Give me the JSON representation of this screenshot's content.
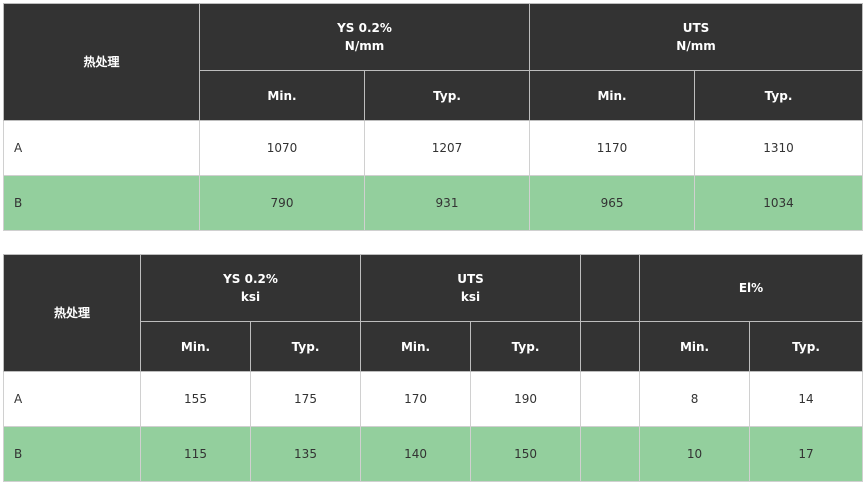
{
  "table1": {
    "col_heat": "热处理",
    "group1_line1": "YS 0.2%",
    "group1_line2": "N/mm",
    "group2_line1": "UTS",
    "group2_line2": "N/mm",
    "min_label": "Min.",
    "typ_label": "Typ.",
    "rows": [
      {
        "name": "A",
        "ys_min": "1070",
        "ys_typ": "1207",
        "uts_min": "1170",
        "uts_typ": "1310"
      },
      {
        "name": "B",
        "ys_min": "790",
        "ys_typ": "931",
        "uts_min": "965",
        "uts_typ": "1034"
      }
    ]
  },
  "table2": {
    "col_heat": "热处理",
    "group1_line1": "YS 0.2%",
    "group1_line2": "ksi",
    "group2_line1": "UTS",
    "group2_line2": "ksi",
    "group3": "",
    "group4": "El%",
    "min_label": "Min.",
    "typ_label": "Typ.",
    "rows": [
      {
        "name": "A",
        "ys_min": "155",
        "ys_typ": "175",
        "uts_min": "170",
        "uts_typ": "190",
        "blank": "",
        "el_min": "8",
        "el_typ": "14"
      },
      {
        "name": "B",
        "ys_min": "115",
        "ys_typ": "135",
        "uts_min": "140",
        "uts_typ": "150",
        "blank": "",
        "el_min": "10",
        "el_typ": "17"
      }
    ]
  },
  "colors": {
    "header_bg": "#333333",
    "row_highlight": "#93cf9d"
  }
}
